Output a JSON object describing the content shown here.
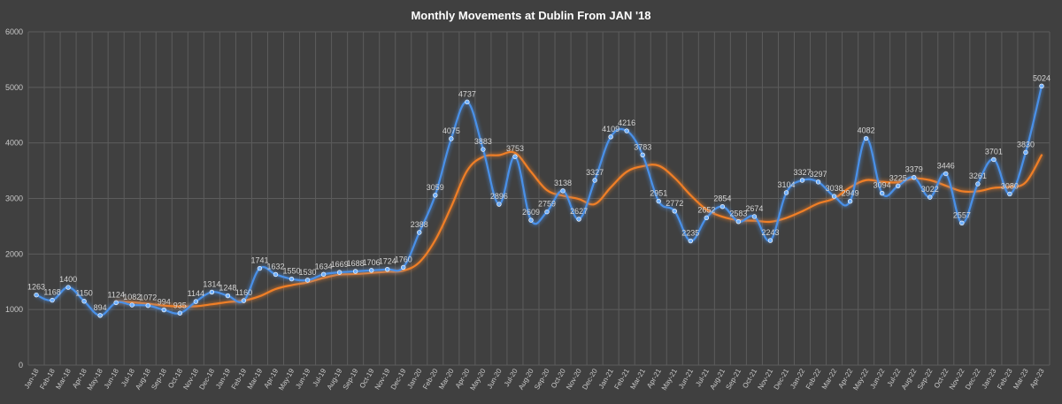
{
  "chart_data": {
    "type": "line",
    "title": "Monthly Movements at Dublin From JAN '18",
    "xlabel": "",
    "ylabel": "",
    "ylim": [
      0,
      6000
    ],
    "yticks": [
      "0",
      "1000",
      "2000",
      "3000",
      "4000",
      "5000",
      "6000"
    ],
    "grid": true,
    "categories": [
      "Jan-18",
      "Feb-18",
      "Mar-18",
      "Apr-18",
      "May-18",
      "Jun-18",
      "Jul-18",
      "Aug-18",
      "Sep-18",
      "Oct-18",
      "Nov-18",
      "Dec-18",
      "Jan-19",
      "Feb-19",
      "Mar-19",
      "Apr-19",
      "May-19",
      "Jun-19",
      "Jul-19",
      "Aug-19",
      "Sep-19",
      "Oct-19",
      "Nov-19",
      "Dec-19",
      "Jan-20",
      "Feb-20",
      "Mar-20",
      "Apr-20",
      "May-20",
      "Jun-20",
      "Jul-20",
      "Aug-20",
      "Sep-20",
      "Oct-20",
      "Nov-20",
      "Dec-20",
      "Jan-21",
      "Feb-21",
      "Mar-21",
      "Apr-21",
      "May-21",
      "Jun-21",
      "Jul-21",
      "Aug-21",
      "Sep-21",
      "Oct-21",
      "Nov-21",
      "Dec-21",
      "Jan-22",
      "Feb-22",
      "Mar-22",
      "Apr-22",
      "May-22",
      "Jun-22",
      "Jul-22",
      "Aug-22",
      "Sep-22",
      "Oct-22",
      "Nov-22",
      "Dec-22",
      "Jan-23",
      "Feb-23",
      "Mar-23",
      "Apr-23"
    ],
    "series": [
      {
        "color": "#4a90e8",
        "labeled": true,
        "values": [
          1263,
          1168,
          1400,
          1150,
          894,
          1124,
          1082,
          1072,
          994,
          935,
          1144,
          1314,
          1248,
          1160,
          1741,
          1632,
          1550,
          1530,
          1634,
          1669,
          1688,
          1706,
          1724,
          1760,
          2388,
          3059,
          4075,
          4737,
          3883,
          2896,
          3753,
          2609,
          2759,
          3138,
          2627,
          3327,
          4109,
          4216,
          3783,
          2951,
          2772,
          2235,
          2652,
          2854,
          2583,
          2674,
          2243,
          3104,
          3327,
          3297,
          3038,
          2949,
          4082,
          3094,
          3225,
          3379,
          3022,
          3446,
          2557,
          3261,
          3701,
          3080,
          3830,
          5024
        ]
      },
      {
        "color": "#f07f28",
        "labeled": false,
        "values": [
          null,
          null,
          null,
          null,
          null,
          1145,
          1130,
          1105,
          1070,
          1055,
          1060,
          1095,
          1135,
          1160,
          1240,
          1370,
          1440,
          1490,
          1570,
          1630,
          1640,
          1660,
          1680,
          1700,
          1850,
          2250,
          2850,
          3500,
          3750,
          3780,
          3820,
          3480,
          3150,
          3050,
          2990,
          2900,
          3200,
          3480,
          3580,
          3590,
          3370,
          3060,
          2800,
          2670,
          2610,
          2600,
          2580,
          2650,
          2770,
          2910,
          3000,
          3200,
          3330,
          3300,
          3290,
          3360,
          3330,
          3230,
          3130,
          3130,
          3190,
          3210,
          3290,
          3780
        ]
      }
    ]
  }
}
